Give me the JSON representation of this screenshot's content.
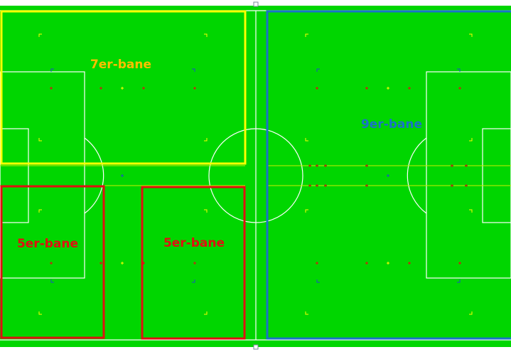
{
  "pitch": {
    "grass_color": "#00d600",
    "line_color": "#ffffff"
  },
  "zones": [
    {
      "id": "seven-a-side",
      "label": "7er-bane",
      "color": "#ffff00",
      "label_color": "#ffbf00"
    },
    {
      "id": "five-a-side-left",
      "label": "5er-bane",
      "color": "#e01010",
      "label_color": "#e01010"
    },
    {
      "id": "five-a-side-right",
      "label": "5er-bane",
      "color": "#e01010",
      "label_color": "#e01010"
    },
    {
      "id": "nine-a-side",
      "label": "9er-bane",
      "color": "#1a73c8",
      "label_color": "#1a73c8"
    }
  ],
  "marker_colors": {
    "yellow": "#ffff00",
    "red": "#e01010",
    "blue": "#1a50c8"
  },
  "icons": [
    "selection-handle-icon"
  ]
}
